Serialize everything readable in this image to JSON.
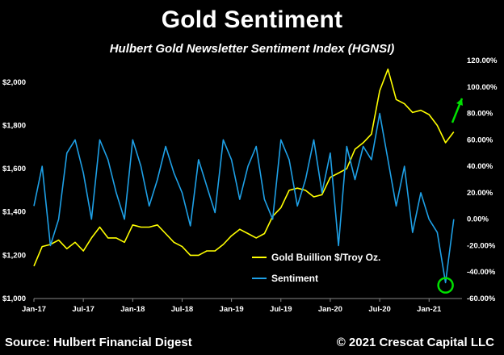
{
  "chart_data": {
    "type": "line",
    "title": "Gold Sentiment",
    "subtitle": "Hulbert Gold Newsletter Sentiment Index (HGNSI)",
    "x_ticks": [
      "Jan-17",
      "Jul-17",
      "Jan-18",
      "Jul-18",
      "Jan-19",
      "Jul-19",
      "Jan-20",
      "Jul-20",
      "Jan-21"
    ],
    "x_range": [
      "2017-01",
      "2021-05"
    ],
    "y_left": {
      "ticks": [
        "$1,000",
        "$1,200",
        "$1,400",
        "$1,600",
        "$1,800",
        "$2,000"
      ],
      "min": 1000,
      "max": 2100
    },
    "y_right": {
      "ticks": [
        "-60.00%",
        "-40.00%",
        "-20.00%",
        "0.00%",
        "20.00%",
        "40.00%",
        "60.00%",
        "80.00%",
        "100.00%",
        "120.00%"
      ],
      "min": -60,
      "max": 120
    },
    "series": [
      {
        "name": "Gold Buillion $/Troy Oz.",
        "axis": "left",
        "color": "#ffff00",
        "x": [
          "2017-01",
          "2017-02",
          "2017-03",
          "2017-04",
          "2017-05",
          "2017-06",
          "2017-07",
          "2017-08",
          "2017-09",
          "2017-10",
          "2017-11",
          "2017-12",
          "2018-01",
          "2018-02",
          "2018-03",
          "2018-04",
          "2018-05",
          "2018-06",
          "2018-07",
          "2018-08",
          "2018-09",
          "2018-10",
          "2018-11",
          "2018-12",
          "2019-01",
          "2019-02",
          "2019-03",
          "2019-04",
          "2019-05",
          "2019-06",
          "2019-07",
          "2019-08",
          "2019-09",
          "2019-10",
          "2019-11",
          "2019-12",
          "2020-01",
          "2020-02",
          "2020-03",
          "2020-04",
          "2020-05",
          "2020-06",
          "2020-07",
          "2020-08",
          "2020-09",
          "2020-10",
          "2020-11",
          "2020-12",
          "2021-01",
          "2021-02",
          "2021-03",
          "2021-04"
        ],
        "values": [
          1150,
          1240,
          1250,
          1270,
          1230,
          1260,
          1220,
          1280,
          1330,
          1280,
          1280,
          1260,
          1340,
          1330,
          1330,
          1340,
          1300,
          1260,
          1240,
          1200,
          1200,
          1220,
          1220,
          1250,
          1290,
          1320,
          1300,
          1280,
          1300,
          1380,
          1420,
          1500,
          1510,
          1500,
          1470,
          1480,
          1560,
          1580,
          1600,
          1690,
          1720,
          1760,
          1960,
          2060,
          1920,
          1900,
          1860,
          1870,
          1850,
          1800,
          1720,
          1770
        ]
      },
      {
        "name": "Sentiment",
        "axis": "right",
        "color": "#1ea0e6",
        "x": [
          "2017-01",
          "2017-02",
          "2017-03",
          "2017-04",
          "2017-05",
          "2017-06",
          "2017-07",
          "2017-08",
          "2017-09",
          "2017-10",
          "2017-11",
          "2017-12",
          "2018-01",
          "2018-02",
          "2018-03",
          "2018-04",
          "2018-05",
          "2018-06",
          "2018-07",
          "2018-08",
          "2018-09",
          "2018-10",
          "2018-11",
          "2018-12",
          "2019-01",
          "2019-02",
          "2019-03",
          "2019-04",
          "2019-05",
          "2019-06",
          "2019-07",
          "2019-08",
          "2019-09",
          "2019-10",
          "2019-11",
          "2019-12",
          "2020-01",
          "2020-02",
          "2020-03",
          "2020-04",
          "2020-05",
          "2020-06",
          "2020-07",
          "2020-08",
          "2020-09",
          "2020-10",
          "2020-11",
          "2020-12",
          "2021-01",
          "2021-02",
          "2021-03",
          "2021-04"
        ],
        "values": [
          10,
          40,
          -20,
          0,
          50,
          60,
          35,
          0,
          60,
          45,
          20,
          0,
          60,
          40,
          10,
          30,
          55,
          35,
          20,
          -5,
          45,
          25,
          5,
          60,
          45,
          15,
          40,
          55,
          15,
          0,
          60,
          45,
          10,
          30,
          60,
          20,
          50,
          -20,
          55,
          30,
          55,
          45,
          80,
          45,
          10,
          40,
          -10,
          20,
          0,
          -10,
          -48,
          0
        ]
      }
    ],
    "legend": {
      "position": "bottom-right"
    },
    "annotations": [
      {
        "type": "circle",
        "at": "2021-03",
        "axis": "right",
        "value": -50,
        "color": "#00e000"
      },
      {
        "type": "arrow",
        "direction": "up-right",
        "color": "#00e000"
      }
    ]
  },
  "footer": {
    "source": "Source: Hulbert Financial Digest",
    "copyright": "© 2021 Crescat Capital LLC"
  }
}
